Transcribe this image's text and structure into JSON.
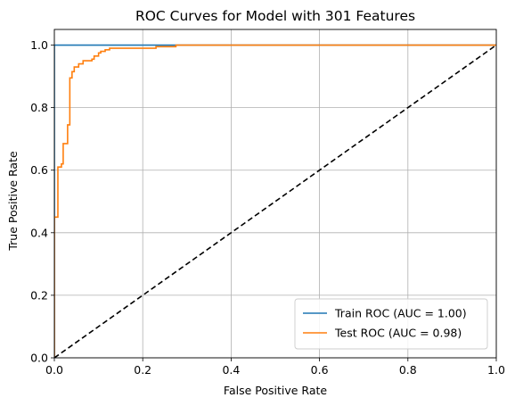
{
  "chart_data": {
    "type": "line",
    "title": "ROC Curves for Model with 301 Features",
    "xlabel": "False Positive Rate",
    "ylabel": "True Positive Rate",
    "xlim": [
      0.0,
      1.0
    ],
    "ylim": [
      0.0,
      1.05
    ],
    "xticks": [
      "0.0",
      "0.2",
      "0.4",
      "0.6",
      "0.8",
      "1.0"
    ],
    "yticks": [
      "0.0",
      "0.2",
      "0.4",
      "0.6",
      "0.8",
      "1.0"
    ],
    "grid": true,
    "legend_position": "lower-right",
    "series": [
      {
        "name": "Train ROC (AUC = 1.00)",
        "color": "#1f77b4",
        "style": "solid",
        "x": [
          0.0,
          0.0,
          1.0
        ],
        "y": [
          0.0,
          1.0,
          1.0
        ]
      },
      {
        "name": "Test ROC (AUC = 0.98)",
        "color": "#ff7f0e",
        "style": "step",
        "x": [
          0.0,
          0.0,
          0.008,
          0.008,
          0.016,
          0.016,
          0.02,
          0.02,
          0.03,
          0.03,
          0.035,
          0.035,
          0.04,
          0.04,
          0.045,
          0.045,
          0.055,
          0.055,
          0.065,
          0.065,
          0.085,
          0.085,
          0.09,
          0.09,
          0.1,
          0.1,
          0.105,
          0.105,
          0.115,
          0.115,
          0.125,
          0.125,
          0.23,
          0.23,
          0.275,
          0.275,
          1.0
        ],
        "y": [
          0.0,
          0.45,
          0.45,
          0.61,
          0.61,
          0.62,
          0.62,
          0.685,
          0.685,
          0.745,
          0.745,
          0.895,
          0.895,
          0.915,
          0.915,
          0.93,
          0.93,
          0.94,
          0.94,
          0.95,
          0.95,
          0.955,
          0.955,
          0.965,
          0.965,
          0.975,
          0.975,
          0.98,
          0.98,
          0.985,
          0.985,
          0.99,
          0.99,
          0.995,
          0.995,
          1.0,
          1.0
        ]
      },
      {
        "name": "",
        "color": "#000000",
        "style": "dashed",
        "x": [
          0.0,
          1.0
        ],
        "y": [
          0.0,
          1.0
        ]
      }
    ]
  }
}
